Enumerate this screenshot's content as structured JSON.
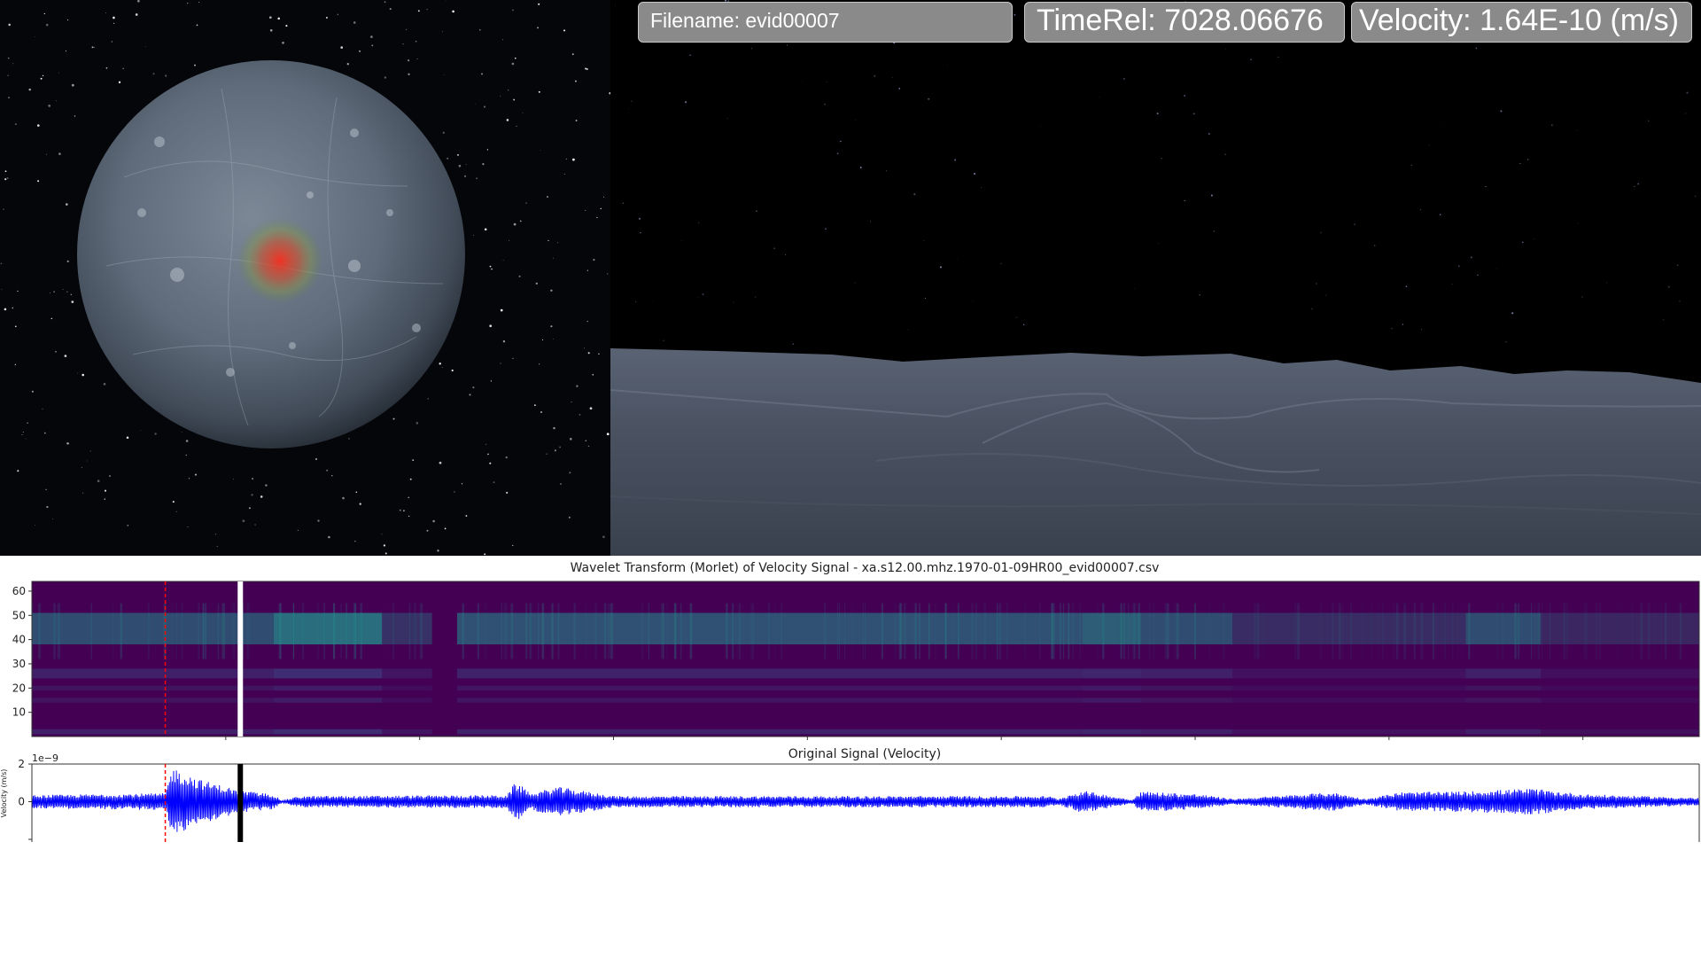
{
  "hud": {
    "filename": "Filename: evid00007",
    "timerel": "TimeRel: 7028.06676",
    "velocity": "Velocity: 1.64E-10 (m/s)"
  },
  "colors": {
    "wavelet_bg": "#440154",
    "wavelet_mid": "#3b528b",
    "wavelet_high": "#21918c",
    "signal": "#0000ff",
    "event_marker": "#ff0000",
    "cursor_wavelet": "#ffffff",
    "cursor_signal": "#000000",
    "hotspot": "#ff2a1a"
  },
  "chart_data": [
    {
      "type": "heatmap",
      "title": "Wavelet Transform (Morlet) of Velocity Signal - xa.s12.00.mhz.1970-01-09HR00_evid00007.csv",
      "xlabel": "",
      "ylabel": "",
      "ylim": [
        0,
        64
      ],
      "yticks": [
        10,
        20,
        30,
        40,
        50,
        60
      ],
      "ytick_labels": [
        "10",
        "20",
        "30",
        "40",
        "50",
        "60"
      ],
      "bands": [
        {
          "from": 1,
          "to": 3,
          "level": "mid"
        },
        {
          "from": 14,
          "to": 16,
          "level": "low"
        },
        {
          "from": 19,
          "to": 21,
          "level": "low"
        },
        {
          "from": 24,
          "to": 28,
          "level": "mid"
        },
        {
          "from": 38,
          "to": 51,
          "level": "high"
        }
      ],
      "active_segments": [
        {
          "start": 0.0,
          "end": 0.145,
          "strength": 0.7
        },
        {
          "start": 0.145,
          "end": 0.21,
          "strength": 1.0
        },
        {
          "start": 0.21,
          "end": 0.24,
          "strength": 0.45
        },
        {
          "start": 0.255,
          "end": 0.63,
          "strength": 0.75
        },
        {
          "start": 0.63,
          "end": 0.665,
          "strength": 0.85
        },
        {
          "start": 0.665,
          "end": 0.72,
          "strength": 0.7
        },
        {
          "start": 0.72,
          "end": 0.86,
          "strength": 0.4
        },
        {
          "start": 0.86,
          "end": 0.905,
          "strength": 0.7
        },
        {
          "start": 0.905,
          "end": 1.0,
          "strength": 0.35
        }
      ],
      "event_marker_position": 0.08,
      "cursor_position": 0.125
    },
    {
      "type": "line",
      "title": "Original Signal (Velocity)",
      "xlabel": "",
      "ylabel": "Velocity (m/s)",
      "y_multiplier": "1e−9",
      "ylim": [
        -2,
        2
      ],
      "yticks": [
        -2,
        0,
        2
      ],
      "ytick_labels": [
        "",
        "0",
        "2"
      ],
      "envelope": [
        {
          "x": 0.0,
          "amp": 0.35
        },
        {
          "x": 0.08,
          "amp": 0.45
        },
        {
          "x": 0.084,
          "amp": 1.85
        },
        {
          "x": 0.1,
          "amp": 1.2
        },
        {
          "x": 0.125,
          "amp": 0.6
        },
        {
          "x": 0.145,
          "amp": 0.4
        },
        {
          "x": 0.15,
          "amp": 0.05
        },
        {
          "x": 0.16,
          "amp": 0.3
        },
        {
          "x": 0.285,
          "amp": 0.35
        },
        {
          "x": 0.29,
          "amp": 1.05
        },
        {
          "x": 0.3,
          "amp": 0.45
        },
        {
          "x": 0.315,
          "amp": 0.8
        },
        {
          "x": 0.35,
          "amp": 0.3
        },
        {
          "x": 0.61,
          "amp": 0.3
        },
        {
          "x": 0.615,
          "amp": 0.15
        },
        {
          "x": 0.63,
          "amp": 0.6
        },
        {
          "x": 0.66,
          "amp": 0.1
        },
        {
          "x": 0.665,
          "amp": 0.55
        },
        {
          "x": 0.7,
          "amp": 0.4
        },
        {
          "x": 0.72,
          "amp": 0.15
        },
        {
          "x": 0.78,
          "amp": 0.5
        },
        {
          "x": 0.8,
          "amp": 0.15
        },
        {
          "x": 0.82,
          "amp": 0.5
        },
        {
          "x": 0.86,
          "amp": 0.55
        },
        {
          "x": 0.9,
          "amp": 0.7
        },
        {
          "x": 0.93,
          "amp": 0.4
        },
        {
          "x": 1.0,
          "amp": 0.2
        }
      ],
      "event_marker_position": 0.08,
      "cursor_position": 0.125
    }
  ]
}
